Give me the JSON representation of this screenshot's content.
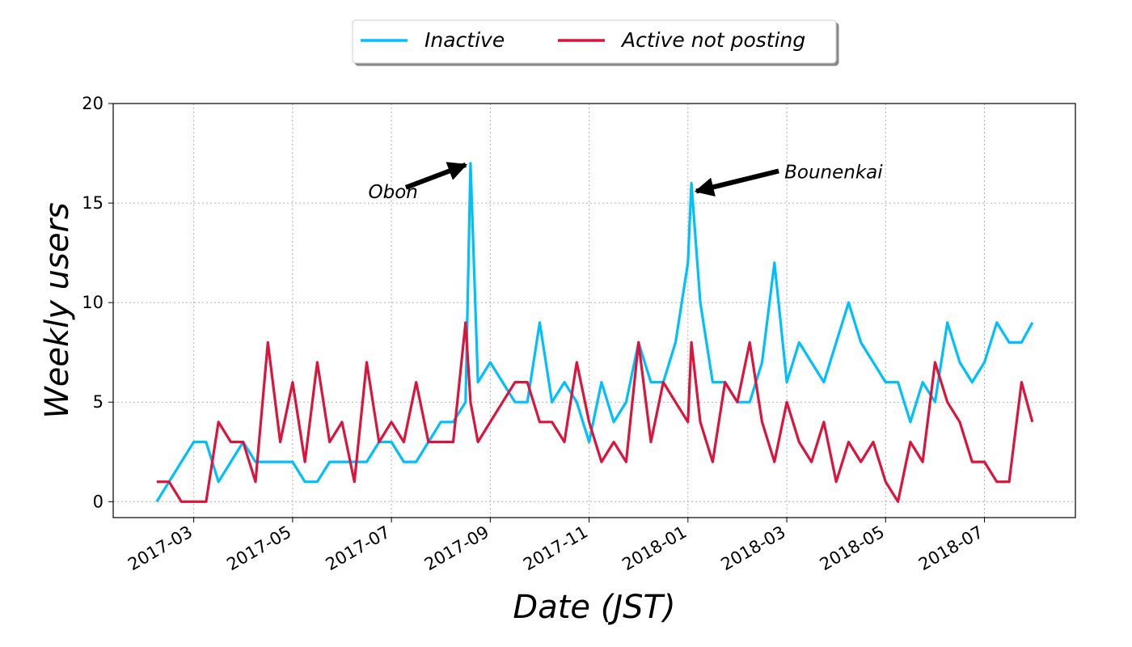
{
  "chart_data": {
    "type": "line",
    "xlabel": "Date (JST)",
    "ylabel": "Weekly users",
    "x": [
      1.25,
      1.5,
      1.75,
      2.0,
      2.25,
      2.5,
      2.75,
      3.0,
      3.25,
      3.5,
      3.75,
      4.0,
      4.25,
      4.5,
      4.75,
      5.0,
      5.25,
      5.5,
      5.75,
      6.0,
      6.25,
      6.5,
      6.75,
      7.0,
      7.25,
      7.5,
      7.6,
      7.75,
      8.0,
      8.25,
      8.5,
      8.75,
      9.0,
      9.25,
      9.5,
      9.75,
      10.0,
      10.25,
      10.5,
      10.75,
      11.0,
      11.25,
      11.5,
      11.75,
      12.0,
      12.07,
      12.25,
      12.5,
      12.75,
      13.0,
      13.25,
      13.5,
      13.75,
      14.0,
      14.25,
      14.5,
      14.75,
      15.0,
      15.25,
      15.5,
      15.75,
      16.0,
      16.25,
      16.5,
      16.75,
      17.0,
      17.25,
      17.5,
      17.75,
      18.0,
      18.25,
      18.5,
      18.75,
      18.97
    ],
    "series": [
      {
        "name": "Inactive",
        "color": "#00bfff",
        "values": [
          0,
          1,
          2,
          3,
          3,
          1,
          2,
          3,
          2,
          2,
          2,
          2,
          1,
          1,
          2,
          2,
          2,
          2,
          3,
          3,
          2,
          2,
          3,
          4,
          4,
          5,
          17,
          6,
          7,
          6,
          5,
          5,
          9,
          5,
          6,
          5,
          3,
          6,
          4,
          5,
          8,
          6,
          6,
          8,
          12,
          16,
          10,
          6,
          6,
          5,
          5,
          7,
          12,
          6,
          8,
          7,
          6,
          8,
          10,
          8,
          7,
          6,
          6,
          4,
          6,
          5,
          9,
          7,
          6,
          7,
          9,
          8,
          8,
          9
        ]
      },
      {
        "name": "Active not posting",
        "color": "#dc143c",
        "values": [
          1,
          1,
          0,
          0,
          0,
          4,
          3,
          3,
          1,
          8,
          3,
          6,
          2,
          7,
          3,
          4,
          1,
          7,
          3,
          4,
          3,
          6,
          3,
          3,
          3,
          9,
          5,
          3,
          4,
          5,
          6,
          6,
          4,
          4,
          3,
          7,
          4,
          2,
          3,
          2,
          8,
          3,
          6,
          5,
          4,
          8,
          4,
          2,
          6,
          5,
          8,
          4,
          2,
          5,
          3,
          2,
          4,
          1,
          3,
          2,
          3,
          1,
          0,
          3,
          2,
          7,
          5,
          4,
          2,
          2,
          1,
          1,
          6,
          4
        ]
      }
    ],
    "xlim": [
      0.37,
      19.84
    ],
    "ylim": [
      -0.8,
      20
    ],
    "xticks": [
      {
        "value": 2,
        "label": "2017-03"
      },
      {
        "value": 4,
        "label": "2017-05"
      },
      {
        "value": 6,
        "label": "2017-07"
      },
      {
        "value": 8,
        "label": "2017-09"
      },
      {
        "value": 10,
        "label": "2017-11"
      },
      {
        "value": 12,
        "label": "2018-01"
      },
      {
        "value": 14,
        "label": "2018-03"
      },
      {
        "value": 16,
        "label": "2018-05"
      },
      {
        "value": 18,
        "label": "2018-07"
      }
    ],
    "yticks": [
      0,
      5,
      10,
      15,
      20
    ],
    "grid": true,
    "legend": "top",
    "annotations": [
      {
        "text": "Obon",
        "x": 7.6,
        "y": 17
      },
      {
        "text": "Bounenkai",
        "x": 12.07,
        "y": 16
      }
    ]
  }
}
